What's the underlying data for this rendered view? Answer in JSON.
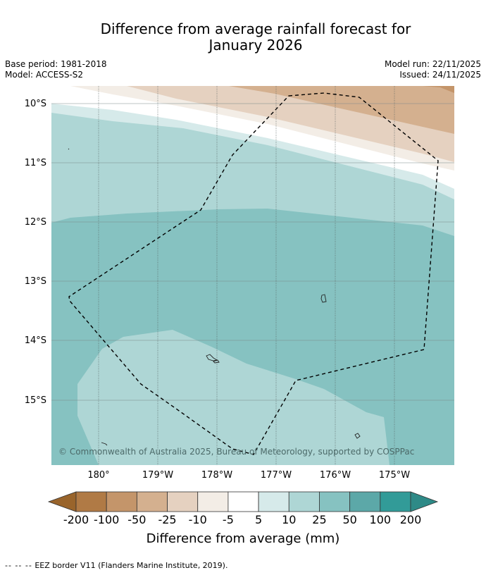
{
  "title": {
    "line1": "Difference from average rainfall forecast for",
    "line2": "January 2026"
  },
  "meta": {
    "base_period": "Base period: 1981-2018",
    "model": "Model: ACCESS-S2",
    "model_run": "Model run: 22/11/2025",
    "issued": "Issued: 24/11/2025"
  },
  "map": {
    "lat_labels": [
      "10°S",
      "11°S",
      "12°S",
      "13°S",
      "14°S",
      "15°S"
    ],
    "lon_labels": [
      "180°",
      "179°W",
      "178°W",
      "177°W",
      "176°W",
      "175°W"
    ],
    "copyright": "© Commonwealth of Australia 2025, Bureau of Meteorology, supported by COSPPac"
  },
  "colorbar": {
    "labels": [
      "-200",
      "-100",
      "-50",
      "-25",
      "-10",
      "-5",
      "5",
      "10",
      "25",
      "50",
      "100",
      "200"
    ],
    "colors": [
      "#99642b",
      "#b07a45",
      "#c4956a",
      "#d4b08f",
      "#e5d1c0",
      "#f3ede6",
      "#ffffff",
      "#d6eaea",
      "#aed6d5",
      "#86c2c1",
      "#5ca8a8",
      "#329b98",
      "#2e8a87"
    ],
    "title": "Difference from average (mm)"
  },
  "footer": {
    "legend_symbol": "--  --  --",
    "legend_text": "EEZ border V11 (Flanders Marine Institute, 2019)."
  }
}
